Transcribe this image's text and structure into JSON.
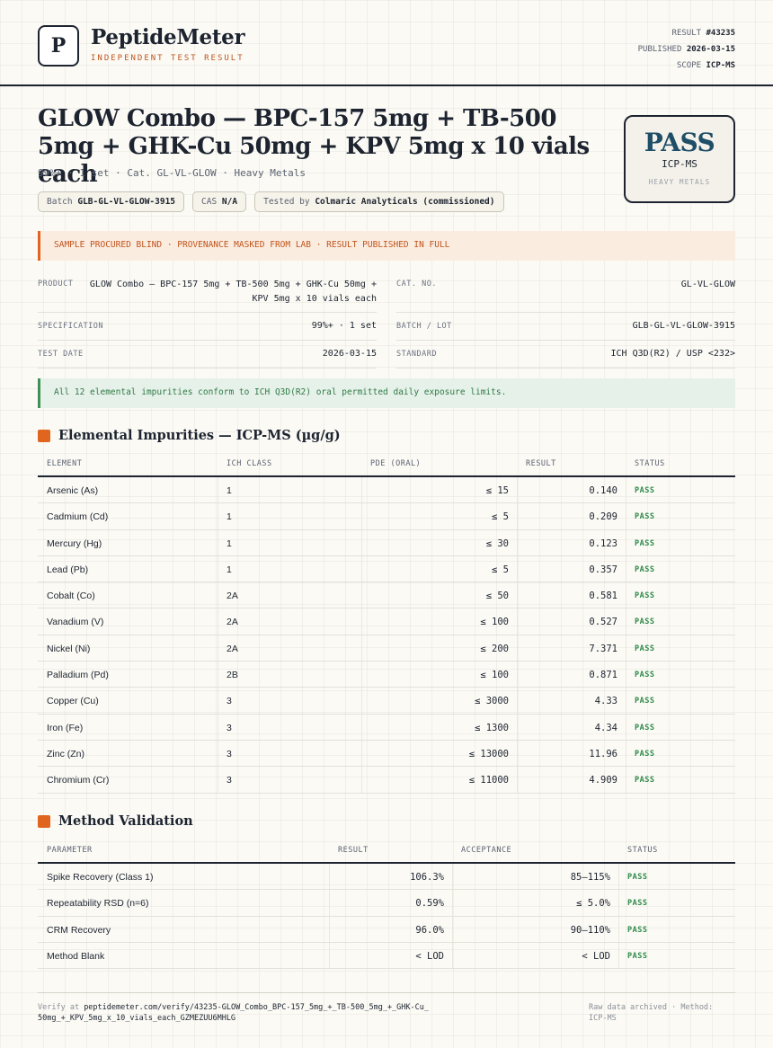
{
  "brand": {
    "logo_letter": "P",
    "name": "PeptideMeter",
    "tagline": "INDEPENDENT TEST RESULT"
  },
  "meta": {
    "result_label": "RESULT",
    "result_value": "#43235",
    "published_label": "PUBLISHED",
    "published_value": "2026-03-15",
    "scope_label": "SCOPE",
    "scope_value": "ICP-MS"
  },
  "title": "GLOW Combo — BPC-157 5mg + TB-500 5mg + GHK-Cu 50mg + KPV 5mg x 10 vials each",
  "subtitle": "99%+ · 1 set · Cat. GL-VL-GLOW · Heavy Metals",
  "chips": {
    "batch_label": "Batch",
    "batch_value": "GLB-GL-VL-GLOW-3915",
    "cas_label": "CAS",
    "cas_value": "N/A",
    "tested_label": "Tested by",
    "tested_value": "Colmaric Analyticals (commissioned)"
  },
  "stamp": {
    "verdict": "PASS",
    "method": "ICP-MS",
    "scope": "HEAVY METALS"
  },
  "notice_warning": "SAMPLE PROCURED BLIND · PROVENANCE MASKED FROM LAB · RESULT PUBLISHED IN FULL",
  "info": {
    "product_label": "PRODUCT",
    "product_value": "GLOW Combo — BPC-157 5mg + TB-500 5mg + GHK-Cu 50mg + KPV 5mg x 10 vials each",
    "catno_label": "CAT. NO.",
    "catno_value": "GL-VL-GLOW",
    "spec_label": "SPECIFICATION",
    "spec_value": "99%+ · 1 set",
    "batch_label": "BATCH / LOT",
    "batch_value": "GLB-GL-VL-GLOW-3915",
    "date_label": "TEST DATE",
    "date_value": "2026-03-15",
    "standard_label": "STANDARD",
    "standard_value": "ICH Q3D(R2) / USP <232>"
  },
  "notice_ok": "All 12 elemental impurities conform to ICH Q3D(R2) oral permitted daily exposure limits.",
  "impurities": {
    "title": "Elemental Impurities — ICP-MS (µg/g)",
    "headers": [
      "ELEMENT",
      "ICH CLASS",
      "PDE (ORAL)",
      "RESULT",
      "STATUS"
    ],
    "rows": [
      {
        "element": "Arsenic (As)",
        "class": "1",
        "pde": "≤ 15",
        "result": "0.140",
        "status": "PASS"
      },
      {
        "element": "Cadmium (Cd)",
        "class": "1",
        "pde": "≤ 5",
        "result": "0.209",
        "status": "PASS"
      },
      {
        "element": "Mercury (Hg)",
        "class": "1",
        "pde": "≤ 30",
        "result": "0.123",
        "status": "PASS"
      },
      {
        "element": "Lead (Pb)",
        "class": "1",
        "pde": "≤ 5",
        "result": "0.357",
        "status": "PASS"
      },
      {
        "element": "Cobalt (Co)",
        "class": "2A",
        "pde": "≤ 50",
        "result": "0.581",
        "status": "PASS"
      },
      {
        "element": "Vanadium (V)",
        "class": "2A",
        "pde": "≤ 100",
        "result": "0.527",
        "status": "PASS"
      },
      {
        "element": "Nickel (Ni)",
        "class": "2A",
        "pde": "≤ 200",
        "result": "7.371",
        "status": "PASS"
      },
      {
        "element": "Palladium (Pd)",
        "class": "2B",
        "pde": "≤ 100",
        "result": "0.871",
        "status": "PASS"
      },
      {
        "element": "Copper (Cu)",
        "class": "3",
        "pde": "≤ 3000",
        "result": "4.33",
        "status": "PASS"
      },
      {
        "element": "Iron (Fe)",
        "class": "3",
        "pde": "≤ 1300",
        "result": "4.34",
        "status": "PASS"
      },
      {
        "element": "Zinc (Zn)",
        "class": "3",
        "pde": "≤ 13000",
        "result": "11.96",
        "status": "PASS"
      },
      {
        "element": "Chromium (Cr)",
        "class": "3",
        "pde": "≤ 11000",
        "result": "4.909",
        "status": "PASS"
      }
    ]
  },
  "validation": {
    "title": "Method Validation",
    "headers": [
      "PARAMETER",
      "RESULT",
      "ACCEPTANCE",
      "STATUS"
    ],
    "rows": [
      {
        "parameter": "Spike Recovery (Class 1)",
        "result": "106.3%",
        "acceptance": "85–115%",
        "status": "PASS"
      },
      {
        "parameter": "Repeatability RSD (n=6)",
        "result": "0.59%",
        "acceptance": "≤ 5.0%",
        "status": "PASS"
      },
      {
        "parameter": "CRM Recovery",
        "result": "96.0%",
        "acceptance": "90–110%",
        "status": "PASS"
      },
      {
        "parameter": "Method Blank",
        "result": "< LOD",
        "acceptance": "< LOD",
        "status": "PASS"
      }
    ]
  },
  "footer": {
    "verify_label": "Verify at",
    "verify_url": "peptidemeter.com/verify/43235-GLOW_Combo_BPC-157_5mg_+_TB-500_5mg_+_GHK-Cu_50mg_+_KPV_5mg_x_10_vials_each_GZMEZUU6MHLG",
    "archive": "Raw data archived · Method: ICP-MS"
  },
  "colors": {
    "ink": "#1d2430",
    "accent_orange": "#e0661f",
    "pass_green": "#2f8a4a",
    "stamp_blue": "#1f4e67"
  }
}
